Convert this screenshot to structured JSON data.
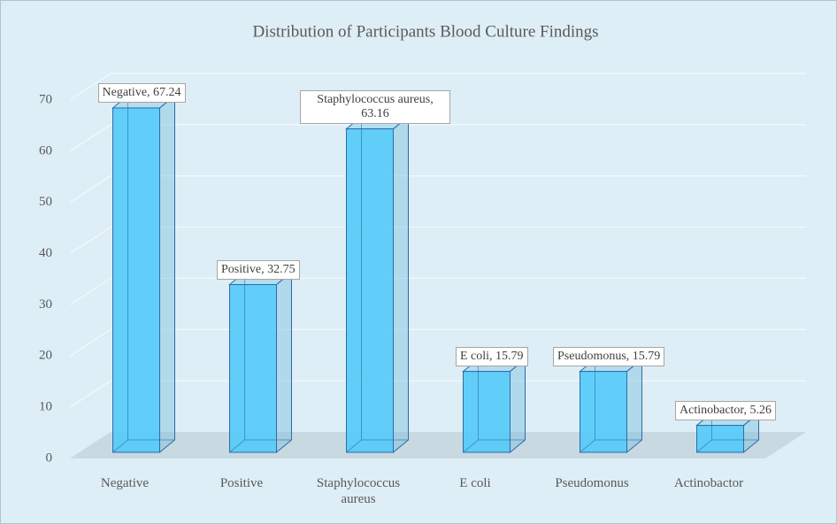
{
  "chart_data": {
    "type": "bar3d",
    "title": "Distribution of Participants Blood Culture Findings",
    "categories": [
      "Negative",
      "Positive",
      "Staphylococcus aureus",
      "E coli",
      "Pseudomonus",
      "Actinobactor"
    ],
    "values": [
      67.24,
      32.75,
      63.16,
      15.79,
      15.79,
      5.26
    ],
    "value_labels": [
      "Negative, 67.24",
      "Positive, 32.75",
      "Staphylococcus aureus, 63.16",
      "E coli, 15.79",
      "Pseudomonus, 15.79",
      "Actinobactor, 5.26"
    ],
    "color": "#55cbf7",
    "ylim": [
      0,
      70
    ],
    "yticks": [
      0,
      10,
      20,
      30,
      40,
      50,
      60,
      70
    ],
    "grid": true
  }
}
